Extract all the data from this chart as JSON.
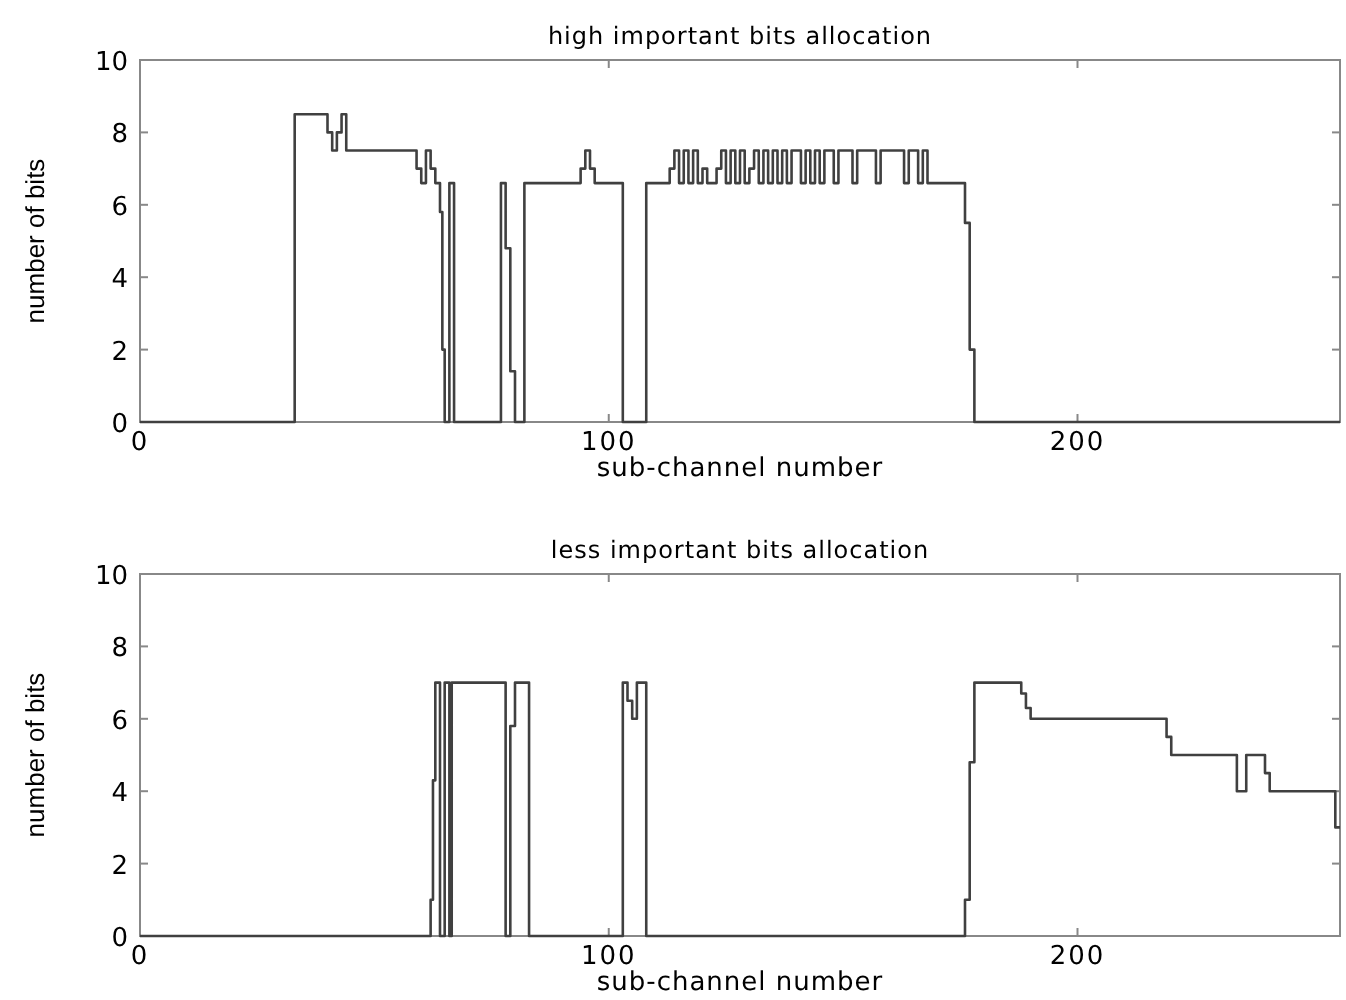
{
  "chart_data": [
    {
      "type": "step",
      "title": "high important bits allocation",
      "xlabel": "sub-channel number",
      "ylabel": "number of bits",
      "xlim": [
        0,
        256
      ],
      "xticks": [
        0,
        100,
        200
      ],
      "ylim": [
        0,
        10
      ],
      "yticks": [
        0,
        2,
        4,
        6,
        8,
        10
      ],
      "grid": false,
      "series": [
        {
          "color": "#404040",
          "x": [
            0,
            33,
            40,
            41,
            42,
            43,
            44,
            59,
            60,
            61,
            62,
            63,
            64,
            64.5,
            65,
            66,
            67,
            77,
            78,
            79,
            80,
            82,
            94,
            95,
            96,
            97,
            103,
            108,
            113,
            114,
            115,
            116,
            117,
            118,
            119,
            120,
            121,
            123,
            124,
            125,
            126,
            127,
            128,
            129,
            130,
            131,
            132,
            133,
            134,
            135,
            136,
            137,
            138,
            139,
            141,
            142,
            143,
            144,
            145,
            146,
            148,
            149,
            152,
            153,
            157,
            158,
            163,
            164,
            166,
            167,
            168,
            169,
            176,
            177,
            178,
            256
          ],
          "values": [
            0,
            8.5,
            8,
            7.5,
            8,
            8.5,
            7.5,
            7,
            6.6,
            7.5,
            7,
            6.6,
            5.8,
            2,
            0,
            6.6,
            0,
            6.6,
            4.8,
            1.4,
            0,
            6.6,
            7,
            7.5,
            7,
            6.6,
            0,
            6.6,
            7,
            7.5,
            6.6,
            7.5,
            6.6,
            7.5,
            6.6,
            7,
            6.6,
            7,
            7.5,
            6.6,
            7.5,
            6.6,
            7.5,
            6.6,
            7,
            7.5,
            6.6,
            7.5,
            6.6,
            7.5,
            6.6,
            7.5,
            6.6,
            7.5,
            6.6,
            7.5,
            6.6,
            7.5,
            6.6,
            7.5,
            6.6,
            7.5,
            6.6,
            7.5,
            6.6,
            7.5,
            6.6,
            7.5,
            6.6,
            7.5,
            6.6,
            6.6,
            5.5,
            2,
            0,
            0
          ]
        }
      ]
    },
    {
      "type": "step",
      "title": "less important bits allocation",
      "xlabel": "sub-channel number",
      "ylabel": "number of bits",
      "xlim": [
        0,
        256
      ],
      "xticks": [
        0,
        100,
        200
      ],
      "ylim": [
        0,
        10
      ],
      "yticks": [
        0,
        2,
        4,
        6,
        8,
        10
      ],
      "grid": false,
      "series": [
        {
          "color": "#404040",
          "x": [
            0,
            62,
            62.5,
            63,
            64,
            65,
            66,
            66.5,
            78,
            79,
            80,
            83,
            103,
            104,
            105,
            106,
            108,
            176,
            177,
            178,
            188,
            189,
            190,
            219,
            220,
            234,
            236,
            240,
            241,
            255,
            256
          ],
          "values": [
            0,
            1,
            4.3,
            7,
            0,
            7,
            0,
            7,
            0,
            5.8,
            7,
            0,
            7,
            6.5,
            6,
            7,
            0,
            1,
            4.8,
            7,
            6.7,
            6.3,
            6,
            5.5,
            5,
            4,
            5,
            4.5,
            4,
            3,
            3
          ]
        }
      ]
    }
  ]
}
